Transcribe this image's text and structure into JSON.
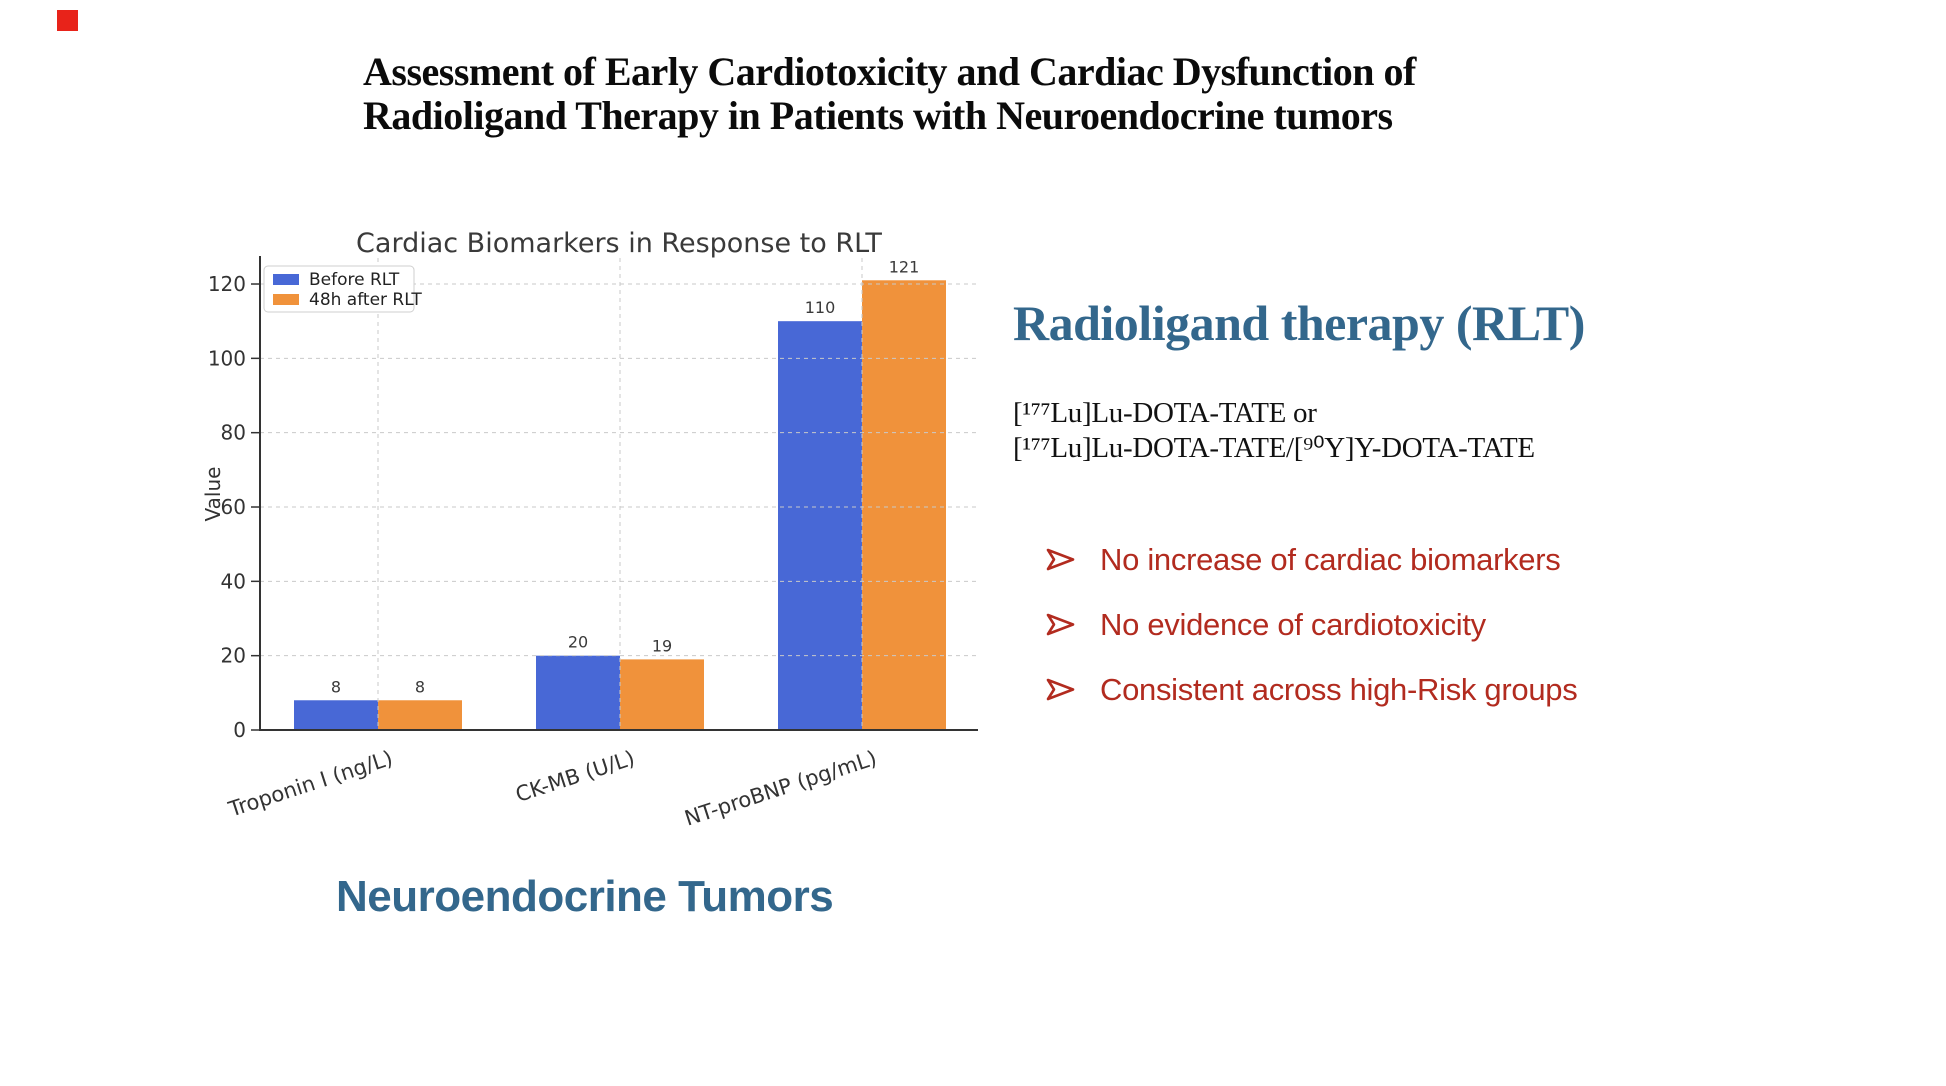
{
  "slide": {
    "decor": {
      "red_square_color": "#e8231a",
      "accent_color": "#33678c",
      "bullet_color": "#b22b1f"
    },
    "title": {
      "line1": "Assessment of Early Cardiotoxicity and Cardiac Dysfunction of",
      "line2": "Radioligand Therapy in Patients with Neuroendocrine tumors"
    },
    "right_panel": {
      "heading": "Radioligand therapy (RLT)",
      "therapy_lines": [
        "[¹⁷⁷Lu]Lu-DOTA-TATE or",
        "[¹⁷⁷Lu]Lu-DOTA-TATE/[⁹⁰Y]Y-DOTA-TATE"
      ],
      "bullets": [
        {
          "icon": "arrow-bullet-icon",
          "text": "No increase of cardiac biomarkers"
        },
        {
          "icon": "arrow-bullet-icon",
          "text": "No evidence of cardiotoxicity"
        },
        {
          "icon": "arrow-bullet-icon",
          "text": "Consistent across high-Risk groups"
        }
      ]
    },
    "footer_label": "Neuroendocrine Tumors"
  },
  "chart_data": {
    "type": "bar",
    "title": "Cardiac Biomarkers in Response to RLT",
    "categories": [
      "Troponin I (ng/L)",
      "CK-MB (U/L)",
      "NT-proBNP (pg/mL)"
    ],
    "series": [
      {
        "name": "Before RLT",
        "color": "#4868d6",
        "values": [
          8,
          20,
          110
        ]
      },
      {
        "name": "48h after RLT",
        "color": "#f0923b",
        "values": [
          8,
          19,
          121
        ]
      }
    ],
    "xlabel": "",
    "ylabel": "Value",
    "yticks": [
      0,
      20,
      40,
      60,
      80,
      100,
      120
    ],
    "ylim": [
      0,
      127
    ],
    "grid": true,
    "grid_style": "dashed",
    "value_labels": true,
    "legend_position": "upper left",
    "text_color": "#333333",
    "title_color": "#3a3a3a"
  }
}
